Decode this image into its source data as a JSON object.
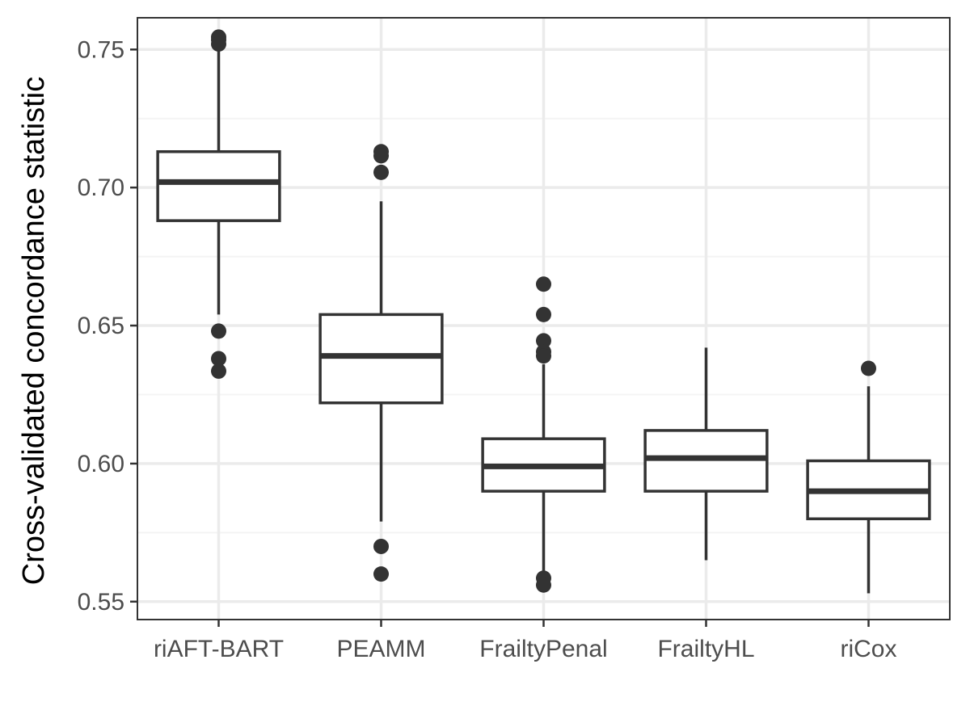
{
  "chart_data": {
    "type": "boxplot",
    "title": "",
    "xlabel": "",
    "ylabel": "Cross-validated concordance statistic",
    "ylim": [
      0.5435,
      0.7615
    ],
    "yticks": [
      0.55,
      0.6,
      0.65,
      0.7,
      0.75
    ],
    "ytick_labels": [
      "0.55",
      "0.60",
      "0.65",
      "0.70",
      "0.75"
    ],
    "grid": true,
    "categories": [
      "riAFT-BART",
      "PEAMM",
      "FrailtyPenal",
      "FrailtyHL",
      "riCox"
    ],
    "boxes": [
      {
        "category": "riAFT-BART",
        "whisker_low": 0.654,
        "q1": 0.688,
        "median": 0.702,
        "q3": 0.713,
        "whisker_high": 0.751,
        "outliers": [
          0.7545,
          0.7535,
          0.752,
          0.648,
          0.638,
          0.6335
        ]
      },
      {
        "category": "PEAMM",
        "whisker_low": 0.579,
        "q1": 0.622,
        "median": 0.639,
        "q3": 0.654,
        "whisker_high": 0.695,
        "outliers": [
          0.713,
          0.7115,
          0.7055,
          0.57,
          0.56
        ]
      },
      {
        "category": "FrailtyPenal",
        "whisker_low": 0.561,
        "q1": 0.59,
        "median": 0.599,
        "q3": 0.609,
        "whisker_high": 0.636,
        "outliers": [
          0.665,
          0.654,
          0.6445,
          0.6405,
          0.639,
          0.5585,
          0.556
        ]
      },
      {
        "category": "FrailtyHL",
        "whisker_low": 0.565,
        "q1": 0.59,
        "median": 0.602,
        "q3": 0.612,
        "whisker_high": 0.642,
        "outliers": []
      },
      {
        "category": "riCox",
        "whisker_low": 0.553,
        "q1": 0.58,
        "median": 0.59,
        "q3": 0.601,
        "whisker_high": 0.628,
        "outliers": [
          0.6345
        ]
      }
    ],
    "colors": {
      "box_stroke": "#333333",
      "box_fill": "#ffffff",
      "outlier": "#333333",
      "grid_major": "#ebebeb",
      "grid_minor": "#f4f4f4",
      "panel_border": "#333333"
    }
  }
}
